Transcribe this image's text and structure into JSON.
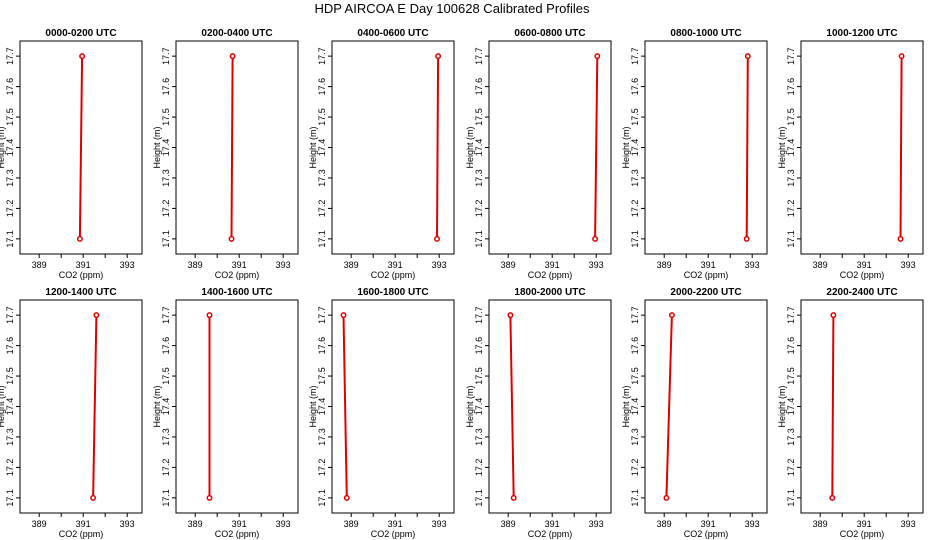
{
  "title": "HDP AIRCOA E  Day 100628  Calibrated Profiles",
  "axes": {
    "xlabel": "CO2 (ppm)",
    "ylabel": "Height (m)",
    "x_ticks": [
      "389",
      "391",
      "393"
    ],
    "y_ticks": [
      "17.1",
      "17.2",
      "17.3",
      "17.4",
      "17.5",
      "17.6",
      "17.7"
    ]
  },
  "chart_data": {
    "type": "line",
    "xlim": [
      388.4,
      393.4
    ],
    "ylim": [
      17.07,
      17.73
    ],
    "x_tick_values": [
      389,
      390,
      391,
      392,
      393
    ],
    "y_tick_values": [
      17.1,
      17.2,
      17.3,
      17.4,
      17.5,
      17.6,
      17.7
    ],
    "line_color": "#dd0000",
    "marker": "open-circle",
    "panels": [
      {
        "title": "0000-0200 UTC",
        "points": [
          {
            "x": 390.85,
            "y": 17.1
          },
          {
            "x": 390.95,
            "y": 17.7
          }
        ]
      },
      {
        "title": "0200-0400 UTC",
        "points": [
          {
            "x": 390.65,
            "y": 17.1
          },
          {
            "x": 390.7,
            "y": 17.7
          }
        ]
      },
      {
        "title": "0400-0600 UTC",
        "points": [
          {
            "x": 392.9,
            "y": 17.1
          },
          {
            "x": 392.95,
            "y": 17.7
          }
        ]
      },
      {
        "title": "0600-0800 UTC",
        "points": [
          {
            "x": 392.95,
            "y": 17.1
          },
          {
            "x": 393.05,
            "y": 17.7
          }
        ]
      },
      {
        "title": "0800-1000 UTC",
        "points": [
          {
            "x": 392.75,
            "y": 17.1
          },
          {
            "x": 392.8,
            "y": 17.7
          }
        ]
      },
      {
        "title": "1000-1200 UTC",
        "points": [
          {
            "x": 392.65,
            "y": 17.1
          },
          {
            "x": 392.7,
            "y": 17.7
          }
        ]
      },
      {
        "title": "1200-1400 UTC",
        "points": [
          {
            "x": 391.45,
            "y": 17.1
          },
          {
            "x": 391.6,
            "y": 17.7
          }
        ]
      },
      {
        "title": "1400-1600 UTC",
        "points": [
          {
            "x": 389.65,
            "y": 17.1
          },
          {
            "x": 389.65,
            "y": 17.7
          }
        ]
      },
      {
        "title": "1600-1800 UTC",
        "points": [
          {
            "x": 388.8,
            "y": 17.1
          },
          {
            "x": 388.65,
            "y": 17.7
          }
        ]
      },
      {
        "title": "1800-2000 UTC",
        "points": [
          {
            "x": 389.25,
            "y": 17.1
          },
          {
            "x": 389.1,
            "y": 17.7
          }
        ]
      },
      {
        "title": "2000-2200 UTC",
        "points": [
          {
            "x": 389.1,
            "y": 17.1
          },
          {
            "x": 389.35,
            "y": 17.7
          }
        ]
      },
      {
        "title": "2200-2400 UTC",
        "points": [
          {
            "x": 389.55,
            "y": 17.1
          },
          {
            "x": 389.6,
            "y": 17.7
          }
        ]
      }
    ]
  }
}
